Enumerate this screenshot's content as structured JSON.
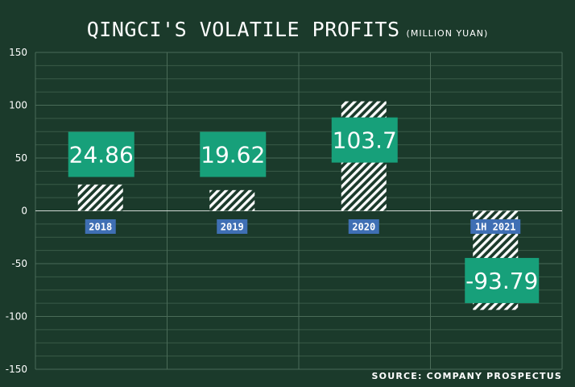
{
  "chart_data": {
    "type": "bar",
    "title": "QINGCI'S VOLATILE PROFITS",
    "subtitle": "(MILLION YUAN)",
    "categories": [
      "2018",
      "2019",
      "2020",
      "1H 2021"
    ],
    "values": [
      24.86,
      19.62,
      103.7,
      -93.79
    ],
    "value_labels": [
      "24.86",
      "19.62",
      "103.7",
      "-93.79"
    ],
    "ylim": [
      -150,
      150
    ],
    "yticks": [
      150,
      100,
      50,
      0,
      -50,
      -100,
      -150
    ],
    "ytick_labels": [
      "150",
      "100",
      "50",
      "0",
      "-50",
      "-100",
      "-150"
    ],
    "grid": true,
    "colors": {
      "background": "#1b3a2b",
      "bar_hatch": "#ffffff",
      "value_box": "#17a07a",
      "category_box": "#3f6fb4",
      "grid_minor": "#3a5a48",
      "grid_major": "#4a6b58",
      "zero_line": "#cfd8d3"
    }
  },
  "source": "SOURCE: COMPANY PROSPECTUS"
}
